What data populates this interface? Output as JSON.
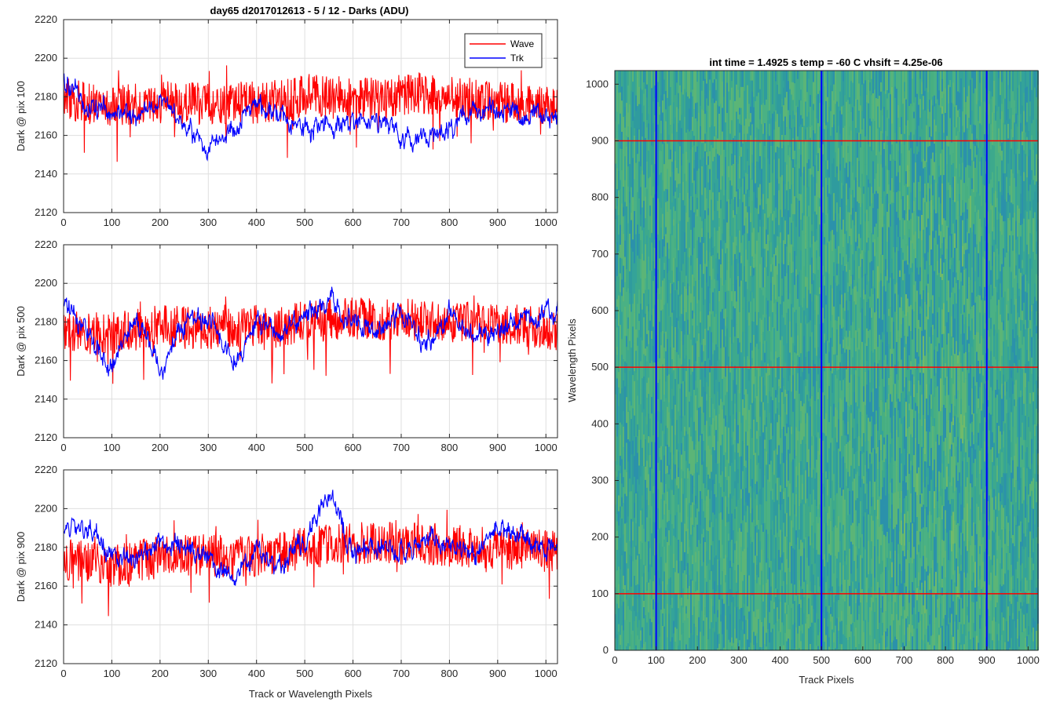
{
  "chart_data": [
    {
      "type": "line",
      "title": "day65 d2017012613 - 5 / 12 - Darks (ADU)",
      "xlabel": "",
      "ylabel": "Dark @ pix 100",
      "xlim": [
        0,
        1024
      ],
      "ylim": [
        2120,
        2220
      ],
      "xticks": [
        0,
        100,
        200,
        300,
        400,
        500,
        600,
        700,
        800,
        900,
        1000
      ],
      "yticks": [
        2120,
        2140,
        2160,
        2180,
        2200,
        2220
      ],
      "grid": true,
      "legend": {
        "position": "top-right",
        "entries": [
          "Wave",
          "Trk"
        ]
      },
      "series": [
        {
          "name": "Wave",
          "color": "#ff0000",
          "x": [
            0,
            50,
            100,
            150,
            200,
            250,
            300,
            350,
            400,
            450,
            500,
            550,
            600,
            650,
            700,
            750,
            800,
            850,
            900,
            950,
            1024
          ],
          "values": [
            2180,
            2176,
            2176,
            2176,
            2177,
            2177,
            2176,
            2177,
            2177,
            2178,
            2181,
            2180,
            2180,
            2178,
            2181,
            2182,
            2180,
            2179,
            2178,
            2176,
            2174
          ]
        },
        {
          "name": "Trk",
          "color": "#0000ff",
          "x": [
            0,
            50,
            100,
            150,
            200,
            250,
            300,
            350,
            400,
            450,
            500,
            550,
            600,
            650,
            700,
            750,
            800,
            850,
            900,
            950,
            1024
          ],
          "values": [
            2186,
            2174,
            2173,
            2170,
            2178,
            2167,
            2152,
            2166,
            2174,
            2172,
            2162,
            2168,
            2166,
            2168,
            2158,
            2155,
            2166,
            2170,
            2176,
            2172,
            2168
          ]
        }
      ]
    },
    {
      "type": "line",
      "title": "",
      "xlabel": "",
      "ylabel": "Dark @ pix 500",
      "xlim": [
        0,
        1024
      ],
      "ylim": [
        2120,
        2220
      ],
      "xticks": [
        0,
        100,
        200,
        300,
        400,
        500,
        600,
        700,
        800,
        900,
        1000
      ],
      "yticks": [
        2120,
        2140,
        2160,
        2180,
        2200,
        2220
      ],
      "grid": true,
      "series": [
        {
          "name": "Wave",
          "color": "#ff0000",
          "x": [
            0,
            50,
            100,
            150,
            200,
            250,
            300,
            350,
            400,
            450,
            500,
            550,
            600,
            650,
            700,
            750,
            800,
            850,
            900,
            950,
            1024
          ],
          "values": [
            2175,
            2174,
            2174,
            2176,
            2178,
            2177,
            2177,
            2176,
            2178,
            2177,
            2180,
            2181,
            2182,
            2181,
            2182,
            2180,
            2181,
            2181,
            2179,
            2178,
            2176
          ]
        },
        {
          "name": "Trk",
          "color": "#0000ff",
          "x": [
            0,
            50,
            100,
            150,
            200,
            250,
            300,
            350,
            400,
            450,
            500,
            550,
            600,
            650,
            700,
            750,
            800,
            850,
            900,
            950,
            1024
          ],
          "values": [
            2190,
            2173,
            2158,
            2180,
            2156,
            2180,
            2183,
            2160,
            2176,
            2178,
            2182,
            2192,
            2179,
            2174,
            2186,
            2168,
            2186,
            2172,
            2174,
            2184,
            2186
          ]
        }
      ]
    },
    {
      "type": "line",
      "title": "",
      "xlabel": "Track or Wavelength Pixels",
      "ylabel": "Dark @ pix 900",
      "xlim": [
        0,
        1024
      ],
      "ylim": [
        2120,
        2220
      ],
      "xticks": [
        0,
        100,
        200,
        300,
        400,
        500,
        600,
        700,
        800,
        900,
        1000
      ],
      "yticks": [
        2120,
        2140,
        2160,
        2180,
        2200,
        2220
      ],
      "grid": true,
      "series": [
        {
          "name": "Wave",
          "color": "#ff0000",
          "x": [
            0,
            50,
            100,
            150,
            200,
            250,
            300,
            350,
            400,
            450,
            500,
            550,
            600,
            650,
            700,
            750,
            800,
            850,
            900,
            950,
            1024
          ],
          "values": [
            2174,
            2172,
            2170,
            2173,
            2175,
            2176,
            2176,
            2175,
            2176,
            2177,
            2180,
            2181,
            2182,
            2182,
            2182,
            2182,
            2181,
            2180,
            2180,
            2179,
            2178
          ]
        },
        {
          "name": "Trk",
          "color": "#0000ff",
          "x": [
            0,
            50,
            100,
            150,
            200,
            250,
            300,
            350,
            400,
            450,
            500,
            550,
            600,
            650,
            700,
            750,
            800,
            850,
            900,
            950,
            1024
          ],
          "values": [
            2188,
            2188,
            2178,
            2174,
            2183,
            2180,
            2172,
            2166,
            2176,
            2172,
            2183,
            2210,
            2176,
            2180,
            2178,
            2184,
            2182,
            2176,
            2190,
            2184,
            2180
          ]
        }
      ]
    },
    {
      "type": "heatmap",
      "title": "int time = 1.4925 s    temp = -60 C    vhsift = 4.25e-06",
      "xlabel": "Track Pixels",
      "ylabel": "Wavelength Pixels",
      "xlim": [
        0,
        1024
      ],
      "ylim": [
        0,
        1024
      ],
      "xticks": [
        0,
        100,
        200,
        300,
        400,
        500,
        600,
        700,
        800,
        900,
        1000
      ],
      "yticks": [
        0,
        100,
        200,
        300,
        400,
        500,
        600,
        700,
        800,
        900,
        1000
      ],
      "colormap": "parula",
      "vertical_lines": {
        "color": "#0000ff",
        "x": [
          100,
          500,
          900
        ]
      },
      "horizontal_lines": {
        "color": "#ff0000",
        "y": [
          100,
          500,
          900
        ]
      }
    }
  ]
}
